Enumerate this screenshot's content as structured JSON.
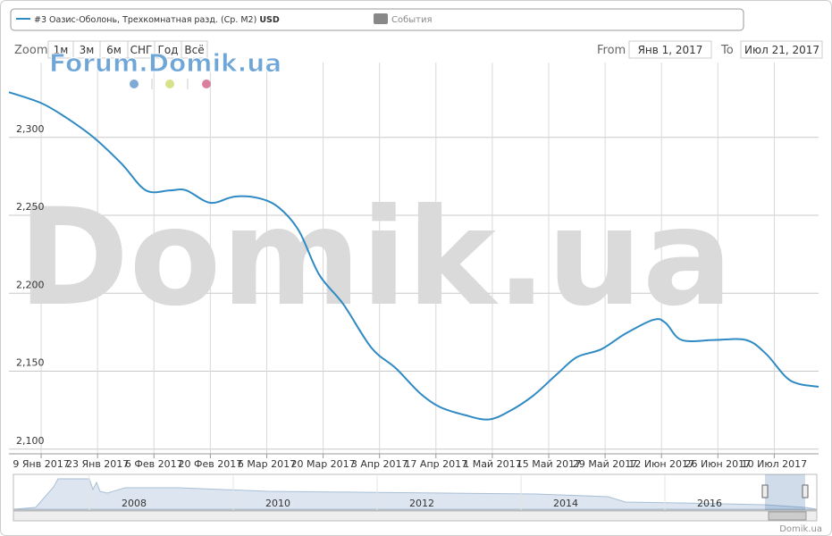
{
  "chart_data": {
    "type": "line",
    "unit": "USD",
    "events_label": "События",
    "x": [
      "2017-01-01",
      "2017-01-09",
      "2017-01-15",
      "2017-01-22",
      "2017-01-29",
      "2017-02-04",
      "2017-02-10",
      "2017-02-14",
      "2017-02-20",
      "2017-02-26",
      "2017-03-04",
      "2017-03-09",
      "2017-03-14",
      "2017-03-19",
      "2017-03-25",
      "2017-04-01",
      "2017-04-07",
      "2017-04-13",
      "2017-04-18",
      "2017-04-24",
      "2017-04-30",
      "2017-05-05",
      "2017-05-11",
      "2017-05-17",
      "2017-05-22",
      "2017-05-28",
      "2017-06-03",
      "2017-06-10",
      "2017-06-13",
      "2017-06-17",
      "2017-06-25",
      "2017-07-03",
      "2017-07-08",
      "2017-07-14",
      "2017-07-21"
    ],
    "series": [
      {
        "name": "#3 Оазис-Оболонь, Трехкомнатная разд. (Ср. М2)",
        "color": "#2f8ac4",
        "values": [
          2329,
          2322,
          2313,
          2300,
          2283,
          2266,
          2266,
          2266,
          2258,
          2262,
          2261,
          2255,
          2240,
          2212,
          2193,
          2165,
          2152,
          2136,
          2127,
          2122,
          2119,
          2124,
          2134,
          2148,
          2159,
          2164,
          2174,
          2183,
          2181,
          2170,
          2170,
          2170,
          2161,
          2144,
          2140
        ]
      }
    ],
    "xlim": [
      "2017-01-01",
      "2017-07-21"
    ],
    "xticks": [
      {
        "value": "2017-01-09",
        "label": "9 Янв 2017"
      },
      {
        "value": "2017-01-23",
        "label": "23 Янв 2017"
      },
      {
        "value": "2017-02-06",
        "label": "6 Фев 2017"
      },
      {
        "value": "2017-02-20",
        "label": "20 Фев 2017"
      },
      {
        "value": "2017-03-06",
        "label": "6 Мар 2017"
      },
      {
        "value": "2017-03-20",
        "label": "20 Мар 2017"
      },
      {
        "value": "2017-04-03",
        "label": "3 Апр 2017"
      },
      {
        "value": "2017-04-17",
        "label": "17 Апр 2017"
      },
      {
        "value": "2017-05-01",
        "label": "1 Май 2017"
      },
      {
        "value": "2017-05-15",
        "label": "15 Май 2017"
      },
      {
        "value": "2017-05-29",
        "label": "29 Май 2017"
      },
      {
        "value": "2017-06-12",
        "label": "12 Июн 2017"
      },
      {
        "value": "2017-06-26",
        "label": "26 Июн 2017"
      },
      {
        "value": "2017-07-10",
        "label": "10 Июл 2017"
      }
    ],
    "ylim": [
      2097,
      2348
    ],
    "yticks": [
      {
        "value": 2100,
        "label": "2,100"
      },
      {
        "value": 2150,
        "label": "2,150"
      },
      {
        "value": 2200,
        "label": "2,200"
      },
      {
        "value": 2250,
        "label": "2,250"
      },
      {
        "value": 2300,
        "label": "2,300"
      }
    ],
    "grid": true
  },
  "zoom": {
    "label": "Zoom",
    "buttons": [
      "1м",
      "3м",
      "6м",
      "СНГ",
      "Год",
      "Всё"
    ]
  },
  "range": {
    "from_label": "From",
    "from": "Янв 1, 2017",
    "to_label": "To",
    "to": "Июл 21, 2017"
  },
  "watermarks": {
    "small": "Forum.Domik.ua",
    "big": "Domik.ua"
  },
  "navigator": {
    "labels": [
      "2008",
      "2010",
      "2012",
      "2014",
      "2016"
    ]
  },
  "credit": "Domik.ua"
}
